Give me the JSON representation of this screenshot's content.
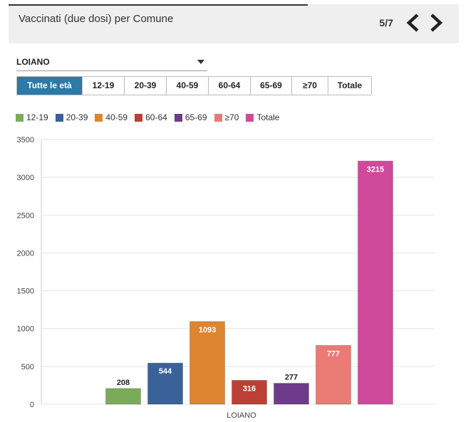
{
  "header": {
    "title": "Vaccinati (due dosi) per Comune",
    "page_indicator": "5/7",
    "prev_icon": "chevron-left-icon",
    "next_icon": "chevron-right-icon"
  },
  "selector": {
    "value": "LOIANO"
  },
  "tabs": [
    {
      "label": "Tutte le età",
      "active": true
    },
    {
      "label": "12-19",
      "active": false
    },
    {
      "label": "20-39",
      "active": false
    },
    {
      "label": "40-59",
      "active": false
    },
    {
      "label": "60-64",
      "active": false
    },
    {
      "label": "65-69",
      "active": false
    },
    {
      "label": "≥70",
      "active": false
    },
    {
      "label": "Totale",
      "active": false
    }
  ],
  "chart_data": {
    "type": "bar",
    "title": "",
    "xlabel": "",
    "ylabel": "",
    "categories": [
      "LOIANO"
    ],
    "ylim": [
      0,
      3500
    ],
    "yticks": [
      0,
      500,
      1000,
      1500,
      2000,
      2500,
      3000,
      3500
    ],
    "grid": true,
    "legend_position": "top-left",
    "series": [
      {
        "name": "12-19",
        "values": [
          208
        ],
        "color": "#7bab5a"
      },
      {
        "name": "20-39",
        "values": [
          544
        ],
        "color": "#3b6298"
      },
      {
        "name": "40-59",
        "values": [
          1093
        ],
        "color": "#dd8530"
      },
      {
        "name": "60-64",
        "values": [
          316
        ],
        "color": "#bd4036"
      },
      {
        "name": "65-69",
        "values": [
          277
        ],
        "color": "#6e3b8a"
      },
      {
        "name": "≥70",
        "values": [
          777
        ],
        "color": "#e97a74"
      },
      {
        "name": "Totale",
        "values": [
          3215
        ],
        "color": "#cf4a9a"
      }
    ]
  }
}
